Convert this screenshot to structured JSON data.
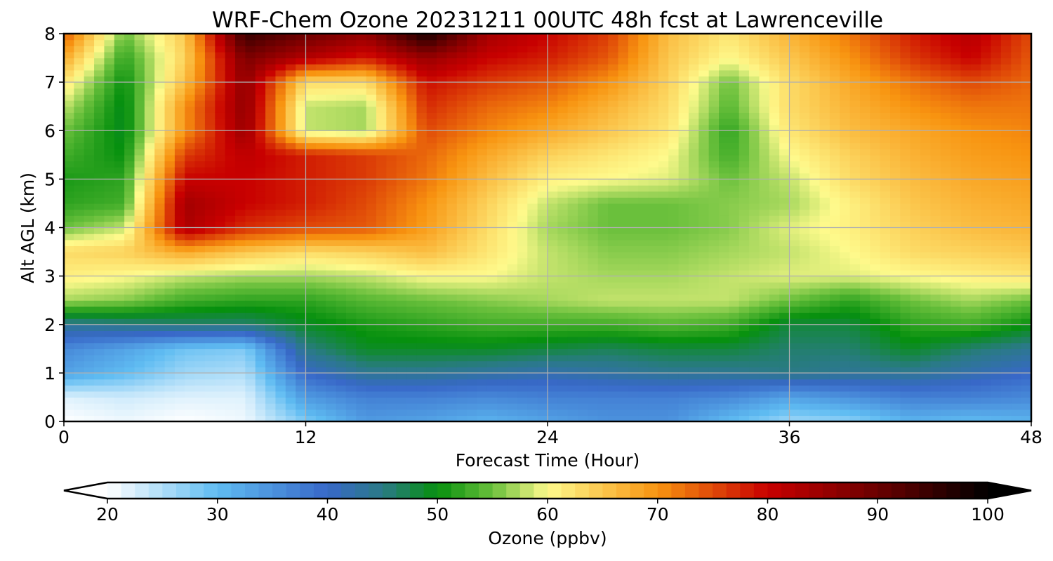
{
  "chart_data": {
    "type": "heatmap",
    "title": "WRF-Chem Ozone  20231211 00UTC 48h fcst at Lawrenceville",
    "xlabel": "Forecast Time (Hour)",
    "ylabel": "Alt AGL (km)",
    "xlim": [
      0,
      48
    ],
    "ylim": [
      0,
      8
    ],
    "xticks": [
      0,
      12,
      24,
      36,
      48
    ],
    "yticks": [
      0,
      1,
      2,
      3,
      4,
      5,
      6,
      7,
      8
    ],
    "grid": true,
    "x": [
      0,
      3,
      6,
      9,
      12,
      15,
      18,
      21,
      24,
      27,
      30,
      33,
      36,
      39,
      42,
      45,
      48
    ],
    "y": [
      0,
      0.5,
      1,
      1.5,
      2,
      2.5,
      3,
      3.5,
      4,
      4.5,
      5,
      5.5,
      6,
      6.5,
      7,
      7.5,
      8
    ],
    "z": [
      [
        20,
        21,
        20,
        21,
        28,
        34,
        33,
        31,
        33,
        35,
        35,
        30,
        26,
        27,
        31,
        30,
        31
      ],
      [
        22,
        23,
        22,
        22,
        34,
        37,
        37,
        36,
        37,
        37,
        37,
        36,
        33,
        35,
        37,
        37,
        36
      ],
      [
        33,
        30,
        26,
        25,
        40,
        44,
        44,
        43,
        42,
        43,
        44,
        44,
        45,
        44,
        44,
        42,
        40
      ],
      [
        36,
        33,
        29,
        28,
        45,
        49,
        49,
        49,
        48,
        47,
        48,
        48,
        46,
        46,
        49,
        46,
        44
      ],
      [
        44,
        45,
        46,
        46,
        49,
        51,
        52,
        53,
        53,
        53,
        54,
        53,
        48,
        48,
        52,
        53,
        50
      ],
      [
        57,
        56,
        53,
        52,
        52,
        54,
        55,
        56,
        57,
        58,
        58,
        58,
        55,
        52,
        55,
        57,
        55
      ],
      [
        61,
        60,
        58,
        57,
        57,
        58,
        60,
        60,
        58,
        57,
        57,
        58,
        59,
        59,
        60,
        61,
        62
      ],
      [
        63,
        64,
        68,
        65,
        63,
        64,
        66,
        62,
        58,
        56,
        56,
        57,
        58,
        60,
        63,
        64,
        65
      ],
      [
        55,
        58,
        83,
        77,
        75,
        74,
        69,
        63,
        57,
        55,
        55,
        56,
        59,
        61,
        64,
        66,
        67
      ],
      [
        52,
        53,
        84,
        80,
        78,
        75,
        70,
        64,
        58,
        55,
        55,
        56,
        57,
        61,
        65,
        67,
        68
      ],
      [
        51,
        52,
        80,
        80,
        78,
        76,
        72,
        66,
        61,
        60,
        59,
        55,
        58,
        63,
        66,
        68,
        69
      ],
      [
        53,
        50,
        76,
        81,
        78,
        76,
        73,
        68,
        64,
        62,
        60,
        53,
        60,
        64,
        67,
        69,
        70
      ],
      [
        55,
        49,
        70,
        85,
        58,
        57,
        75,
        71,
        68,
        65,
        62,
        52,
        62,
        66,
        68,
        70,
        71
      ],
      [
        58,
        49,
        70,
        86,
        58,
        57,
        77,
        73,
        71,
        67,
        63,
        54,
        63,
        67,
        70,
        72,
        72
      ],
      [
        62,
        50,
        66,
        86,
        63,
        63,
        79,
        76,
        74,
        70,
        64,
        55,
        63,
        68,
        72,
        75,
        73
      ],
      [
        68,
        52,
        64,
        88,
        82,
        78,
        85,
        80,
        78,
        74,
        65,
        60,
        65,
        70,
        76,
        80,
        74
      ],
      [
        74,
        55,
        65,
        95,
        90,
        86,
        98,
        84,
        80,
        76,
        66,
        62,
        67,
        72,
        78,
        82,
        75
      ]
    ],
    "colorbar": {
      "label": "Ozone  (ppbv)",
      "min": 20,
      "max": 100,
      "ticks": [
        20,
        30,
        40,
        50,
        60,
        70,
        80,
        90,
        100
      ],
      "extend": "both",
      "placement": "bottom",
      "colors": [
        [
          20,
          "#ffffff"
        ],
        [
          30,
          "#5fbcf2"
        ],
        [
          40,
          "#3868c8"
        ],
        [
          45,
          "#2a7a86"
        ],
        [
          50,
          "#06900e"
        ],
        [
          55,
          "#6ac03c"
        ],
        [
          60,
          "#fefa8c"
        ],
        [
          70,
          "#f89410"
        ],
        [
          80,
          "#c80000"
        ],
        [
          90,
          "#6a0000"
        ],
        [
          100,
          "#000000"
        ]
      ]
    }
  }
}
